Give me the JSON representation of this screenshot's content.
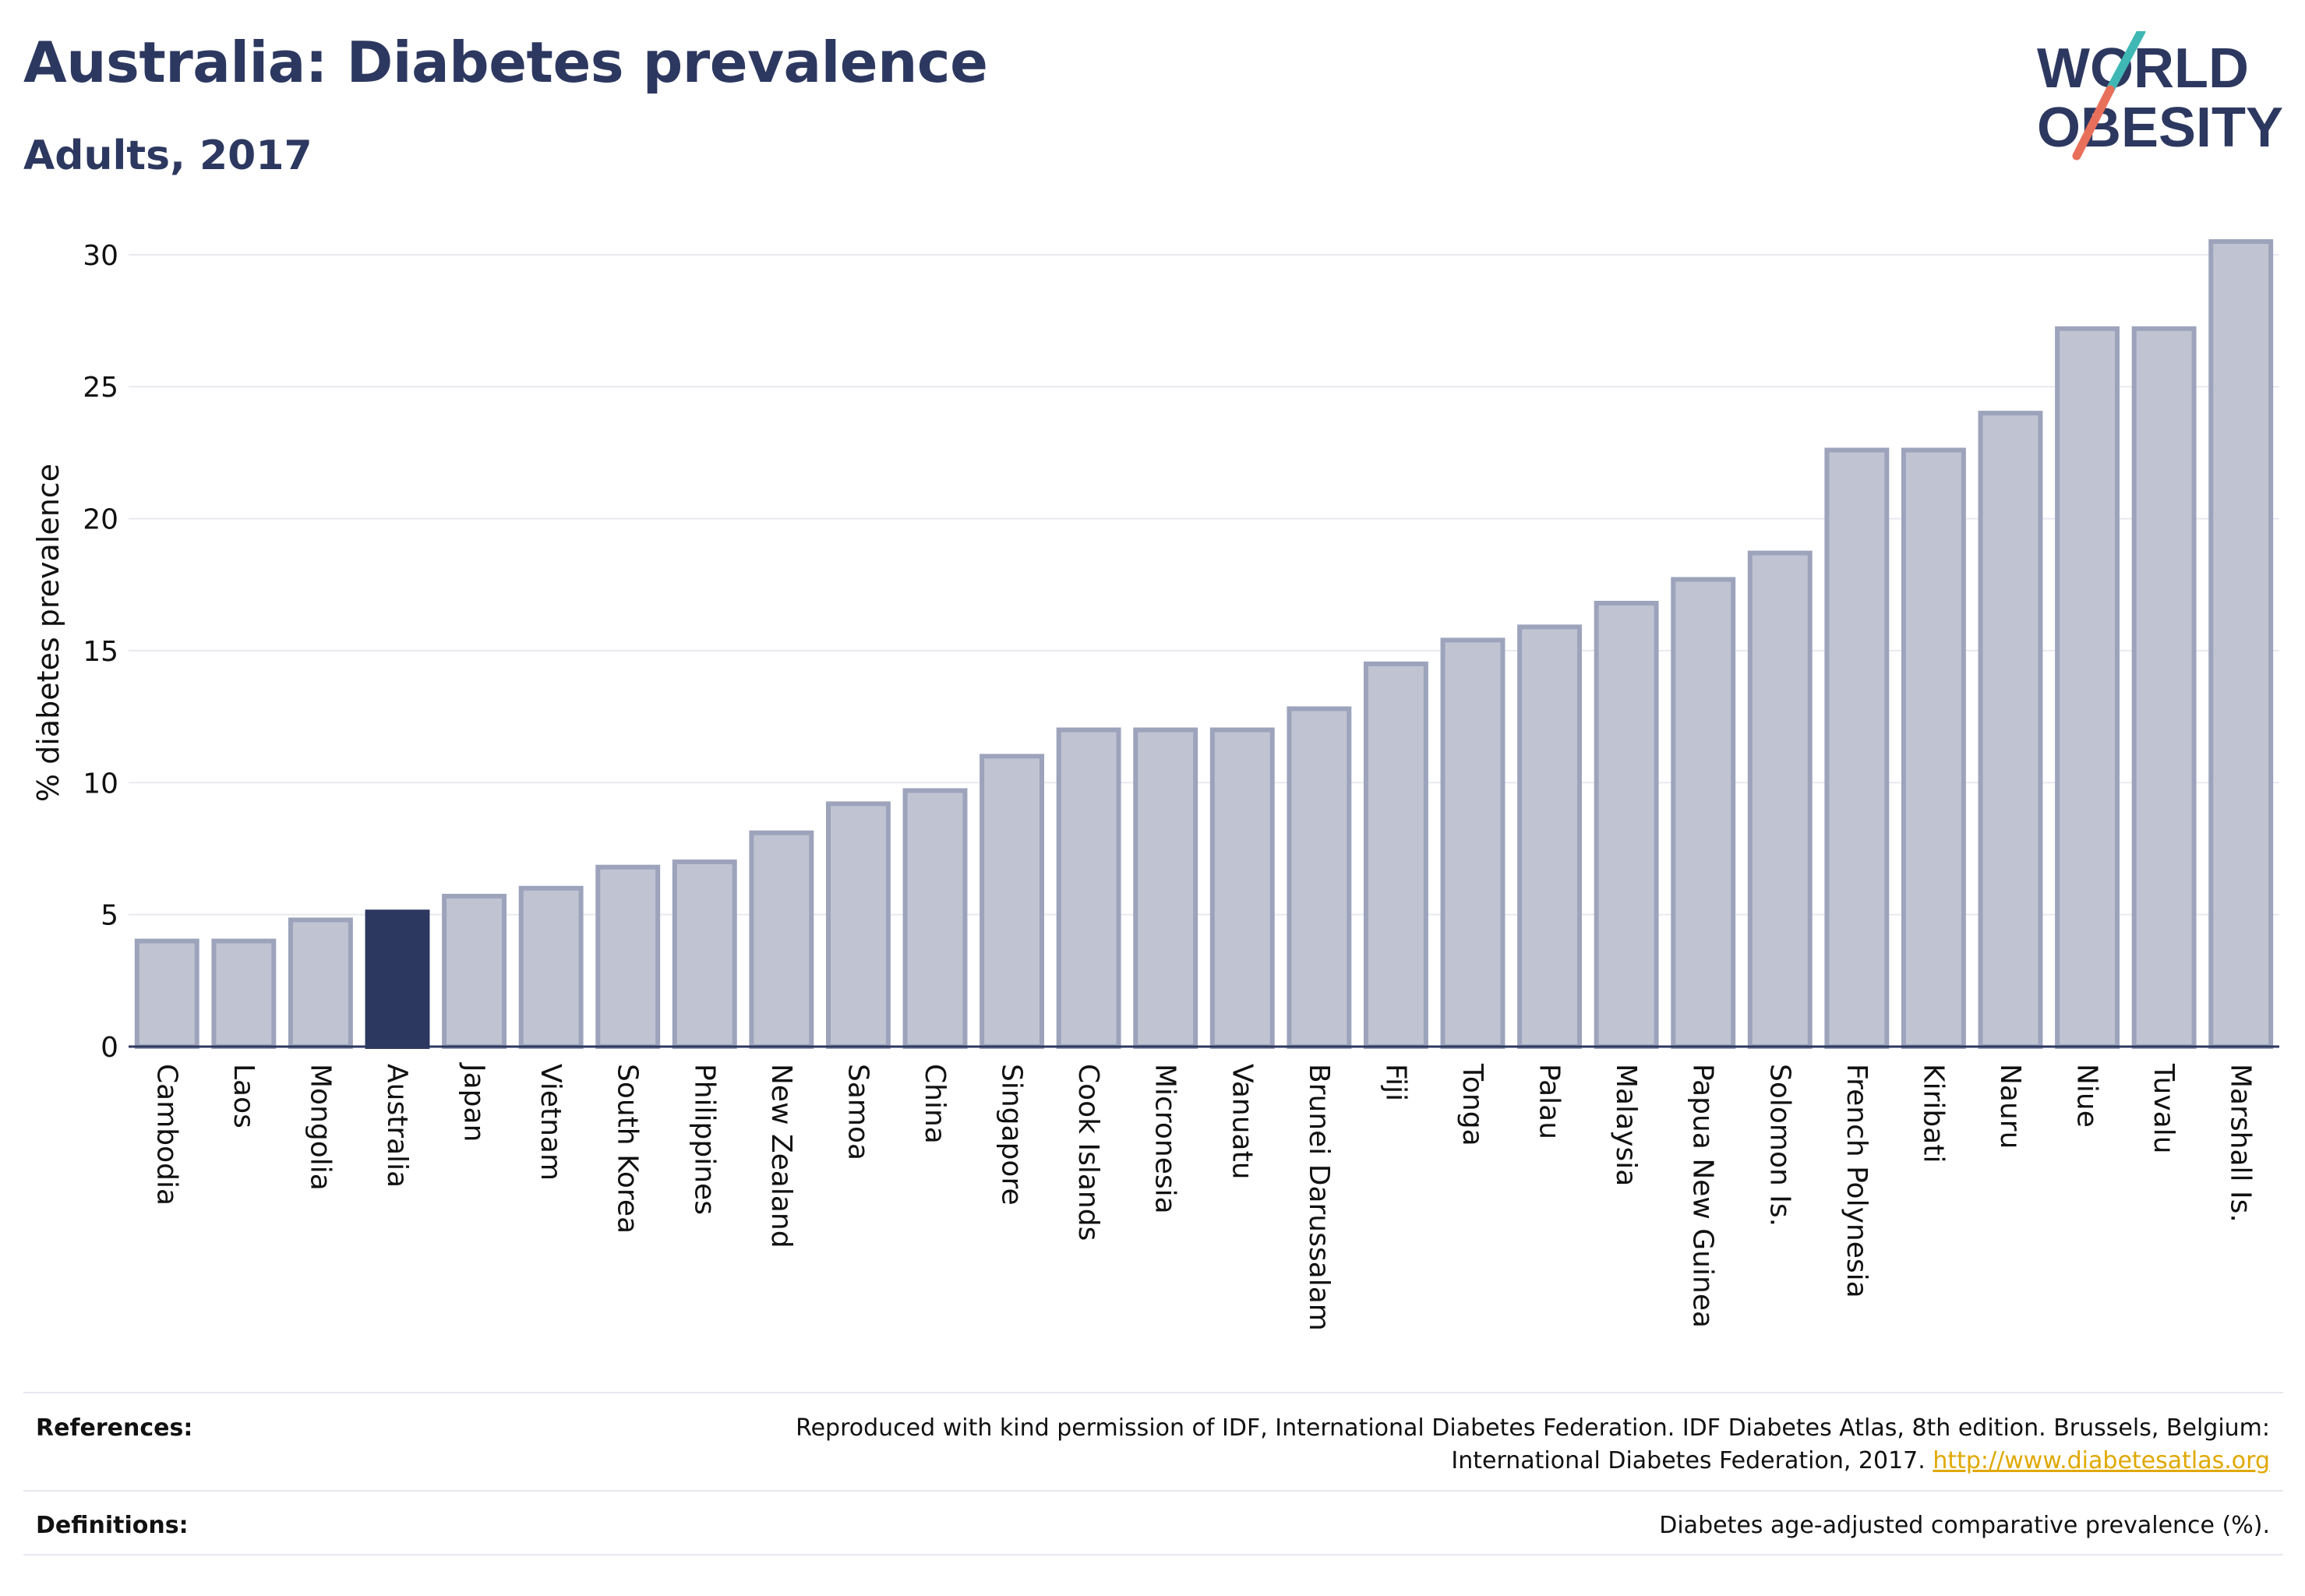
{
  "title": "Australia: Diabetes prevalence",
  "subtitle": "Adults, 2017",
  "logo": {
    "line1": "WORLD",
    "line2": "OBESITY"
  },
  "colors": {
    "title": "#2d3860",
    "bar_fill": "#c0c4d2",
    "bar_stroke": "#9ca3bb",
    "highlight": "#2d3860",
    "grid": "#e8eaf0",
    "axis": "#2d3860",
    "logo_slash_teal": "#3fb8b5",
    "logo_slash_coral": "#e8705a",
    "link": "#e0a800"
  },
  "chart_data": {
    "type": "bar",
    "ylabel": "% diabetes prevalence",
    "ylim": [
      0,
      31
    ],
    "yticks": [
      0,
      5,
      10,
      15,
      20,
      25,
      30
    ],
    "grid": true,
    "highlight": "Australia",
    "categories": [
      "Cambodia",
      "Laos",
      "Mongolia",
      "Australia",
      "Japan",
      "Vietnam",
      "South Korea",
      "Philippines",
      "New Zealand",
      "Samoa",
      "China",
      "Singapore",
      "Cook Islands",
      "Micronesia",
      "Vanuatu",
      "Brunei Darussalam",
      "Fiji",
      "Tonga",
      "Palau",
      "Malaysia",
      "Papua New Guinea",
      "Solomon Is.",
      "French Polynesia",
      "Kiribati",
      "Nauru",
      "Niue",
      "Tuvalu",
      "Marshall Is."
    ],
    "values": [
      4.0,
      4.0,
      4.8,
      5.1,
      5.7,
      6.0,
      6.8,
      7.0,
      8.1,
      9.2,
      9.7,
      11.0,
      12.0,
      12.0,
      12.0,
      12.8,
      14.5,
      15.4,
      15.9,
      16.8,
      17.7,
      18.7,
      22.6,
      22.6,
      24.0,
      27.2,
      27.2,
      30.5
    ]
  },
  "footer": {
    "references_label": "References:",
    "references_line1": "Reproduced with kind permission of IDF, International Diabetes Federation. IDF Diabetes Atlas, 8th edition. Brussels, Belgium:",
    "references_line2": "International Diabetes Federation, 2017.",
    "references_link": "http://www.diabetesatlas.org",
    "definitions_label": "Definitions:",
    "definitions_text": "Diabetes age-adjusted comparative prevalence (%)."
  }
}
